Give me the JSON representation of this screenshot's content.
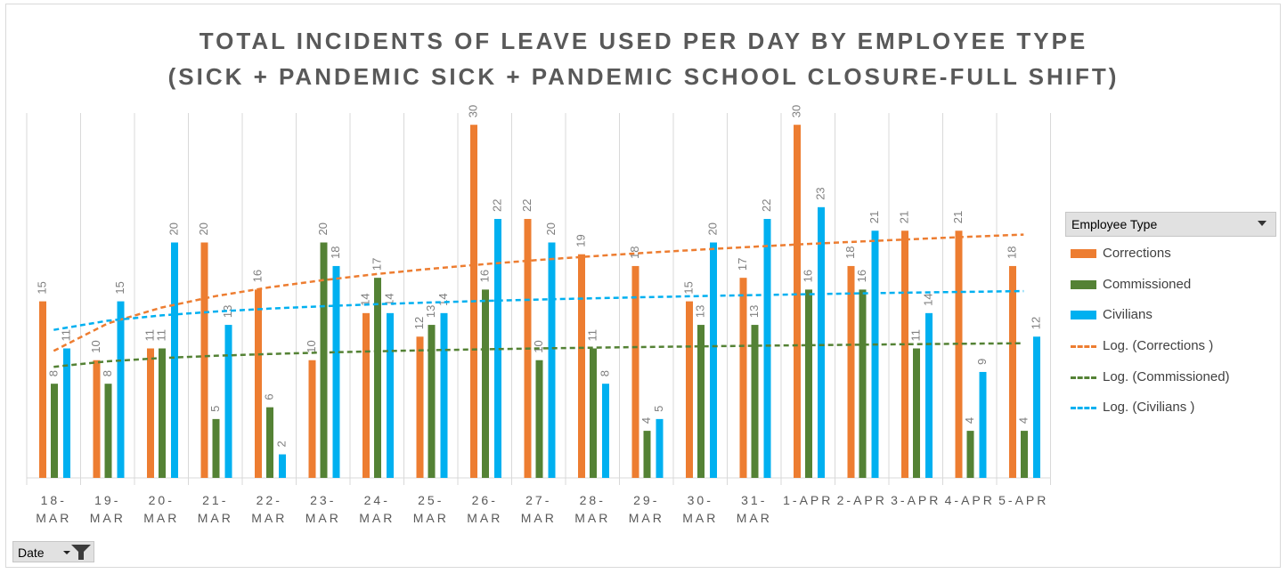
{
  "chart_data": {
    "type": "bar",
    "title_line1": "TOTAL INCIDENTS OF LEAVE USED PER DAY BY EMPLOYEE TYPE",
    "title_line2": "(SICK + PANDEMIC SICK + PANDEMIC SCHOOL CLOSURE-FULL SHIFT)",
    "categories": [
      "18-MAR",
      "19-MAR",
      "20-MAR",
      "21-MAR",
      "22-MAR",
      "23-MAR",
      "24-MAR",
      "25-MAR",
      "26-MAR",
      "27-MAR",
      "28-MAR",
      "29-MAR",
      "30-MAR",
      "31-MAR",
      "1-APR",
      "2-APR",
      "3-APR",
      "4-APR",
      "5-APR"
    ],
    "category_lines": [
      [
        "18-",
        "MAR"
      ],
      [
        "19-",
        "MAR"
      ],
      [
        "20-",
        "MAR"
      ],
      [
        "21-",
        "MAR"
      ],
      [
        "22-",
        "MAR"
      ],
      [
        "23-",
        "MAR"
      ],
      [
        "24-",
        "MAR"
      ],
      [
        "25-",
        "MAR"
      ],
      [
        "26-",
        "MAR"
      ],
      [
        "27-",
        "MAR"
      ],
      [
        "28-",
        "MAR"
      ],
      [
        "29-",
        "MAR"
      ],
      [
        "30-",
        "MAR"
      ],
      [
        "31-",
        "MAR"
      ],
      [
        "1-APR",
        ""
      ],
      [
        "2-APR",
        ""
      ],
      [
        "3-APR",
        ""
      ],
      [
        "4-APR",
        ""
      ],
      [
        "5-APR",
        ""
      ]
    ],
    "series": [
      {
        "name": "Corrections",
        "color": "#ED7D31",
        "values": [
          15,
          10,
          11,
          20,
          16,
          10,
          14,
          12,
          30,
          22,
          19,
          18,
          15,
          17,
          30,
          18,
          21,
          21,
          18
        ]
      },
      {
        "name": "Commissioned",
        "color": "#548235",
        "values": [
          8,
          8,
          11,
          5,
          6,
          20,
          17,
          13,
          16,
          10,
          11,
          4,
          13,
          13,
          16,
          16,
          11,
          4,
          4
        ]
      },
      {
        "name": "Civilians",
        "color": "#00B0F0",
        "values": [
          11,
          15,
          20,
          13,
          2,
          18,
          14,
          14,
          22,
          20,
          8,
          5,
          20,
          22,
          23,
          21,
          14,
          9,
          12
        ]
      }
    ],
    "trendlines": [
      {
        "name": "Log. (Corrections )",
        "color": "#ED7D31",
        "type": "logarithmic",
        "series": "Corrections"
      },
      {
        "name": "Log. (Commissioned)",
        "color": "#548235",
        "type": "logarithmic",
        "series": "Commissioned"
      },
      {
        "name": "Log. (Civilians )",
        "color": "#00B0F0",
        "type": "logarithmic",
        "series": "Civilians"
      }
    ],
    "ylim": [
      0,
      31
    ],
    "grid": "vertical",
    "legend": "right",
    "data_labels": true
  },
  "legend": {
    "header": "Employee Type",
    "items": [
      {
        "label": "Corrections",
        "kind": "bar",
        "color": "#ED7D31"
      },
      {
        "label": "Commissioned",
        "kind": "bar",
        "color": "#548235"
      },
      {
        "label": "Civilians",
        "kind": "bar",
        "color": "#00B0F0"
      },
      {
        "label": "Log. (Corrections )",
        "kind": "line",
        "color": "#ED7D31"
      },
      {
        "label": "Log. (Commissioned)",
        "kind": "line",
        "color": "#548235"
      },
      {
        "label": "Log. (Civilians )",
        "kind": "line",
        "color": "#00B0F0"
      }
    ]
  },
  "filter": {
    "label": "Date",
    "icon": "filter-funnel-icon"
  }
}
